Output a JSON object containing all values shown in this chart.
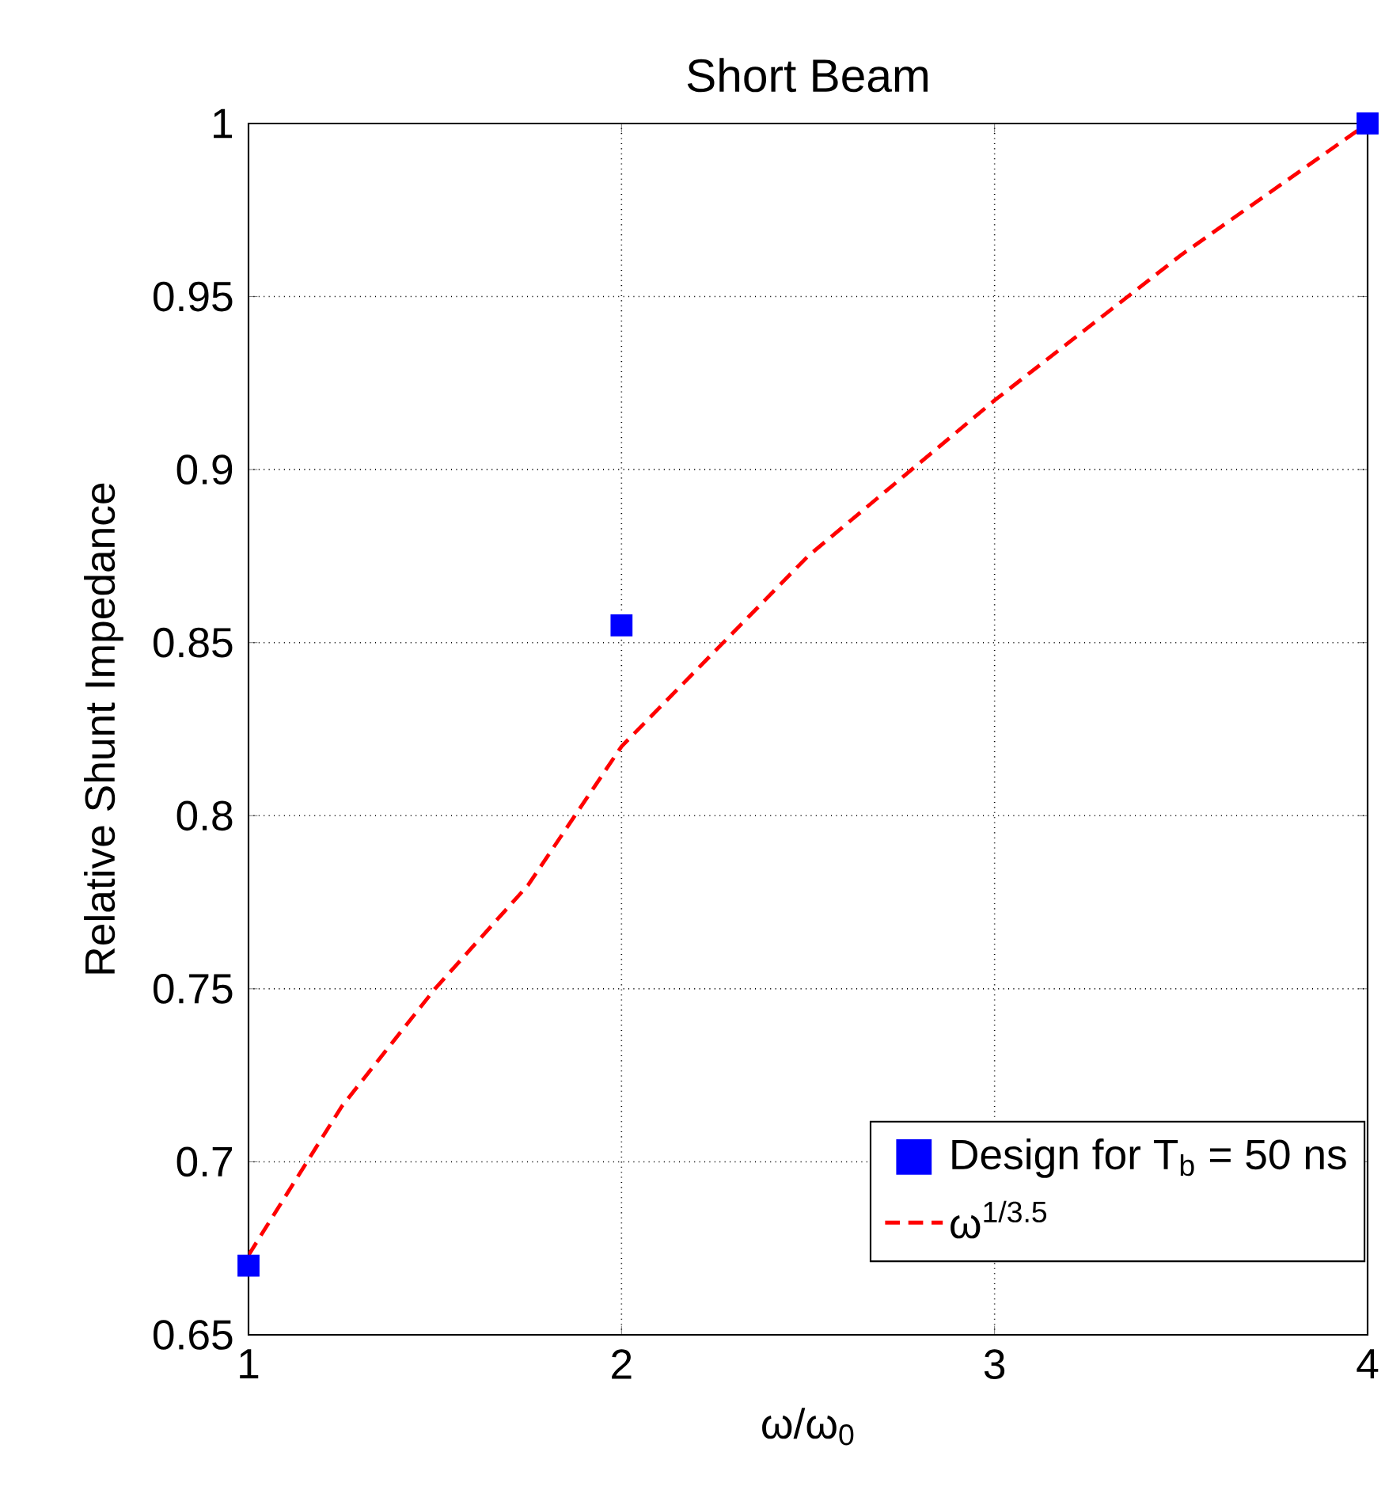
{
  "chart_data": {
    "type": "scatter",
    "title": "Short Beam",
    "xlabel": "ω/ω$_{0}$",
    "ylabel": "Relative Shunt Impedance",
    "xlim": [
      1,
      4
    ],
    "ylim": [
      0.65,
      1
    ],
    "xticks": [
      1,
      2,
      3,
      4
    ],
    "yticks": [
      0.65,
      0.7,
      0.75,
      0.8,
      0.85,
      0.9,
      0.95,
      1
    ],
    "grid": true,
    "legend": "bottom right",
    "series": [
      {
        "name": "Design for T$_{b}$ = 50 ns",
        "marker": "square",
        "color": "#0000ff",
        "x": [
          1,
          2,
          4
        ],
        "values": [
          0.67,
          0.855,
          1.0
        ]
      },
      {
        "name": "ω$^{1/3.5}$",
        "type": "line",
        "line_style": "dashed",
        "marker": "none",
        "color": "#ff0000",
        "x": [
          1,
          1.25,
          1.5,
          1.75,
          2,
          2.5,
          3,
          3.5,
          4
        ],
        "values": [
          0.673,
          0.716,
          0.75,
          0.78,
          0.82,
          0.875,
          0.92,
          0.962,
          1.0
        ]
      }
    ]
  }
}
